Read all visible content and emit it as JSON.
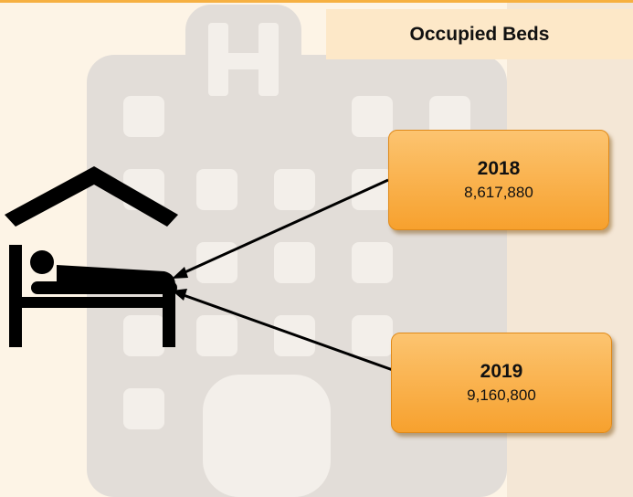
{
  "title": "Occupied Beds",
  "items": [
    {
      "year": "2018",
      "value": "8,617,880"
    },
    {
      "year": "2019",
      "value": "9,160,800"
    }
  ]
}
